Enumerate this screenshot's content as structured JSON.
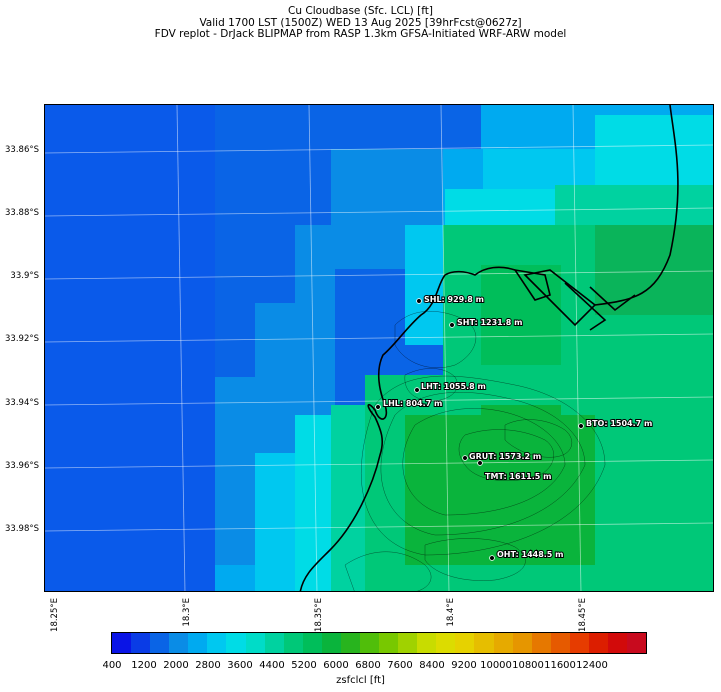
{
  "title": {
    "line1": "Cu Cloudbase (Sfc. LCL) [ft]",
    "line2": "Valid 1700 LST (1500Z) WED 13 Aug 2025 [39hrFcst@0627z]",
    "line3": "FDV replot - DrJack BLIPMAP from RASP 1.3km GFSA-Initiated WRF-ARW model"
  },
  "axes": {
    "lat_labels": [
      "33.86°S",
      "33.88°S",
      "33.9°S",
      "33.92°S",
      "33.94°S",
      "33.96°S",
      "33.98°S"
    ],
    "lon_labels": [
      "18.25°E",
      "18.3°E",
      "18.35°E",
      "18.4°E",
      "18.45°E"
    ]
  },
  "stations": [
    {
      "label": "SHL: 929.8 m"
    },
    {
      "label": "SHT: 1231.8 m"
    },
    {
      "label": "LHT: 1055.8 m"
    },
    {
      "label": "LHL: 804.7 m"
    },
    {
      "label": "BTO: 1504.7 m"
    },
    {
      "label": "GRUT: 1573.2 m"
    },
    {
      "label": "TMT: 1611.5 m"
    },
    {
      "label": "OHT: 1448.5 m"
    }
  ],
  "colorbar": {
    "label": "zsfclcl [ft]",
    "ticks": [
      "400",
      "1200",
      "2000",
      "2800",
      "3600",
      "4400",
      "5200",
      "6000",
      "6800",
      "7600",
      "8400",
      "9200",
      "10000",
      "10800",
      "11600",
      "12400"
    ],
    "colors": [
      "#0a14e6",
      "#0a3ce6",
      "#0a64e6",
      "#0a8ce6",
      "#00aaf0",
      "#00c8f0",
      "#00dce6",
      "#00dcc8",
      "#00d2a0",
      "#00c878",
      "#00be5a",
      "#0ab43c",
      "#28b41e",
      "#50be0a",
      "#78c800",
      "#a0d200",
      "#c8dc00",
      "#dcdc00",
      "#e6d200",
      "#e6be00",
      "#e6aa00",
      "#e69600",
      "#e67800",
      "#e65a00",
      "#e63c00",
      "#dc1e00",
      "#d20a0a",
      "#c80a1e"
    ]
  }
}
